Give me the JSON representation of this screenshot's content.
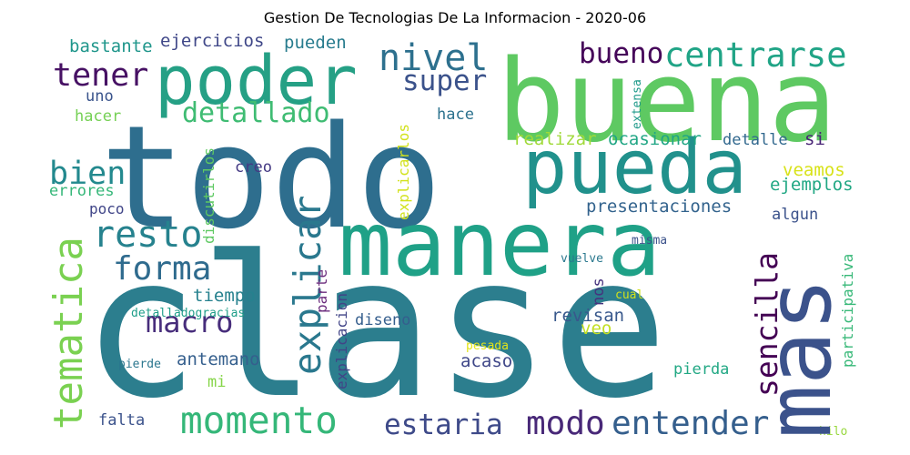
{
  "title": "Gestion De Tecnologias De La Informacion - 2020-06",
  "words": [
    {
      "text": "clase",
      "color": "#2c7e8e"
    },
    {
      "text": "todo",
      "color": "#2e6e8e"
    },
    {
      "text": "buena",
      "color": "#5ec962"
    },
    {
      "text": "manera",
      "color": "#1fa187"
    },
    {
      "text": "pueda",
      "color": "#21918c"
    },
    {
      "text": "poder",
      "color": "#25a085"
    },
    {
      "text": "mas",
      "color": "#3b528b"
    },
    {
      "text": "momento",
      "color": "#35b779"
    },
    {
      "text": "tematica",
      "color": "#7ad151"
    },
    {
      "text": "explicar",
      "color": "#2a788e"
    },
    {
      "text": "centrarse",
      "color": "#20a486"
    },
    {
      "text": "entender",
      "color": "#355f8d"
    },
    {
      "text": "sencilla",
      "color": "#440154"
    },
    {
      "text": "detallado",
      "color": "#3fbc73"
    },
    {
      "text": "estaria",
      "color": "#3e4a89"
    },
    {
      "text": "modo",
      "color": "#482878"
    },
    {
      "text": "resto",
      "color": "#26828e"
    },
    {
      "text": "forma",
      "color": "#2f6b8e"
    },
    {
      "text": "macro",
      "color": "#472d7b"
    },
    {
      "text": "bien",
      "color": "#23898e"
    },
    {
      "text": "tener",
      "color": "#471164"
    },
    {
      "text": "nivel",
      "color": "#2d708e"
    },
    {
      "text": "bueno",
      "color": "#450559"
    },
    {
      "text": "super",
      "color": "#3b528b"
    },
    {
      "text": "presentaciones",
      "color": "#33638d"
    },
    {
      "text": "realizar",
      "color": "#a0da39"
    },
    {
      "text": "ocasionar",
      "color": "#21a685"
    },
    {
      "text": "detalle",
      "color": "#31688e"
    },
    {
      "text": "si",
      "color": "#482475"
    },
    {
      "text": "veamos",
      "color": "#d8e219"
    },
    {
      "text": "ejemplos",
      "color": "#22a884"
    },
    {
      "text": "algun",
      "color": "#3b528b"
    },
    {
      "text": "hace",
      "color": "#2c728e"
    },
    {
      "text": "ejercicios",
      "color": "#3f4788"
    },
    {
      "text": "pueden",
      "color": "#287c8e"
    },
    {
      "text": "bastante",
      "color": "#1f968b"
    },
    {
      "text": "uno",
      "color": "#3a548c"
    },
    {
      "text": "hacer",
      "color": "#75d054"
    },
    {
      "text": "errores",
      "color": "#35b779"
    },
    {
      "text": "poco",
      "color": "#404588"
    },
    {
      "text": "creo",
      "color": "#443983"
    },
    {
      "text": "tiempo",
      "color": "#26818e"
    },
    {
      "text": "detalladogracias",
      "color": "#1f9e89"
    },
    {
      "text": "antemano",
      "color": "#355f8d"
    },
    {
      "text": "pierde",
      "color": "#2a768e"
    },
    {
      "text": "mi",
      "color": "#86d549"
    },
    {
      "text": "falta",
      "color": "#3b528b"
    },
    {
      "text": "diseno",
      "color": "#355e8d"
    },
    {
      "text": "acaso",
      "color": "#3f4788"
    },
    {
      "text": "revisan",
      "color": "#38588c"
    },
    {
      "text": "veo",
      "color": "#c2df23"
    },
    {
      "text": "pierda",
      "color": "#22a884"
    },
    {
      "text": "pesada",
      "color": "#e2e418"
    },
    {
      "text": "vuelve",
      "color": "#2a788e"
    },
    {
      "text": "misma",
      "color": "#3b528b"
    },
    {
      "text": "cual",
      "color": "#d0e11c"
    },
    {
      "text": "hilo",
      "color": "#98d83e"
    },
    {
      "text": "explicarlos",
      "color": "#d2e21b"
    },
    {
      "text": "discutirlos",
      "color": "#5ec962"
    },
    {
      "text": "extensa",
      "color": "#1f9a8a"
    },
    {
      "text": "participativa",
      "color": "#37b878"
    },
    {
      "text": "parte",
      "color": "#6a2b7c"
    },
    {
      "text": "explicacion",
      "color": "#414487"
    },
    {
      "text": "nos",
      "color": "#46337e"
    }
  ]
}
